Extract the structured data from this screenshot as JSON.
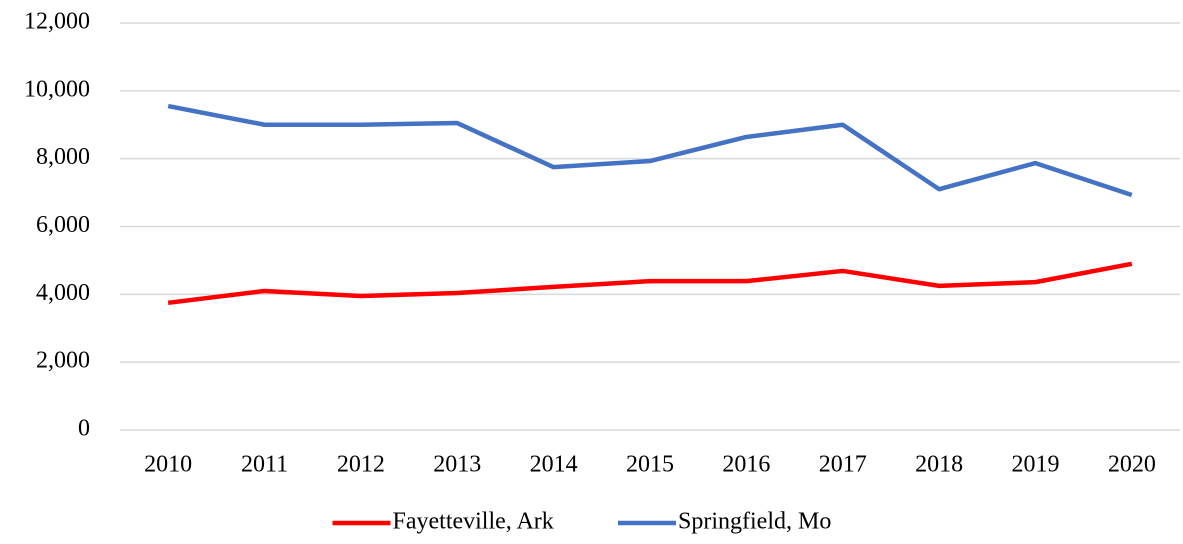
{
  "chart_data": {
    "type": "line",
    "categories": [
      "2010",
      "2011",
      "2012",
      "2013",
      "2014",
      "2015",
      "2016",
      "2017",
      "2018",
      "2019",
      "2020"
    ],
    "series": [
      {
        "name": "Fayetteville, Ark",
        "color": "#ff0000",
        "values": [
          3750,
          4100,
          3950,
          4040,
          4220,
          4390,
          4390,
          4690,
          4250,
          4360,
          4900
        ]
      },
      {
        "name": "Springfield, Mo",
        "color": "#4472c4",
        "values": [
          9550,
          9000,
          9000,
          9050,
          7750,
          7930,
          8640,
          9000,
          7100,
          7870,
          6930
        ]
      }
    ],
    "ylim": [
      0,
      12000
    ],
    "yticks": [
      0,
      {
        "value": 2000,
        "label": "2,000"
      },
      {
        "value": 4000,
        "label": "4,000"
      },
      {
        "value": 6000,
        "label": "6,000"
      },
      {
        "value": 8000,
        "label": "8,000"
      },
      {
        "value": 10000,
        "label": "10,000"
      },
      {
        "value": 12000,
        "label": "12,000"
      }
    ],
    "grid": true,
    "legend": "bottom"
  }
}
